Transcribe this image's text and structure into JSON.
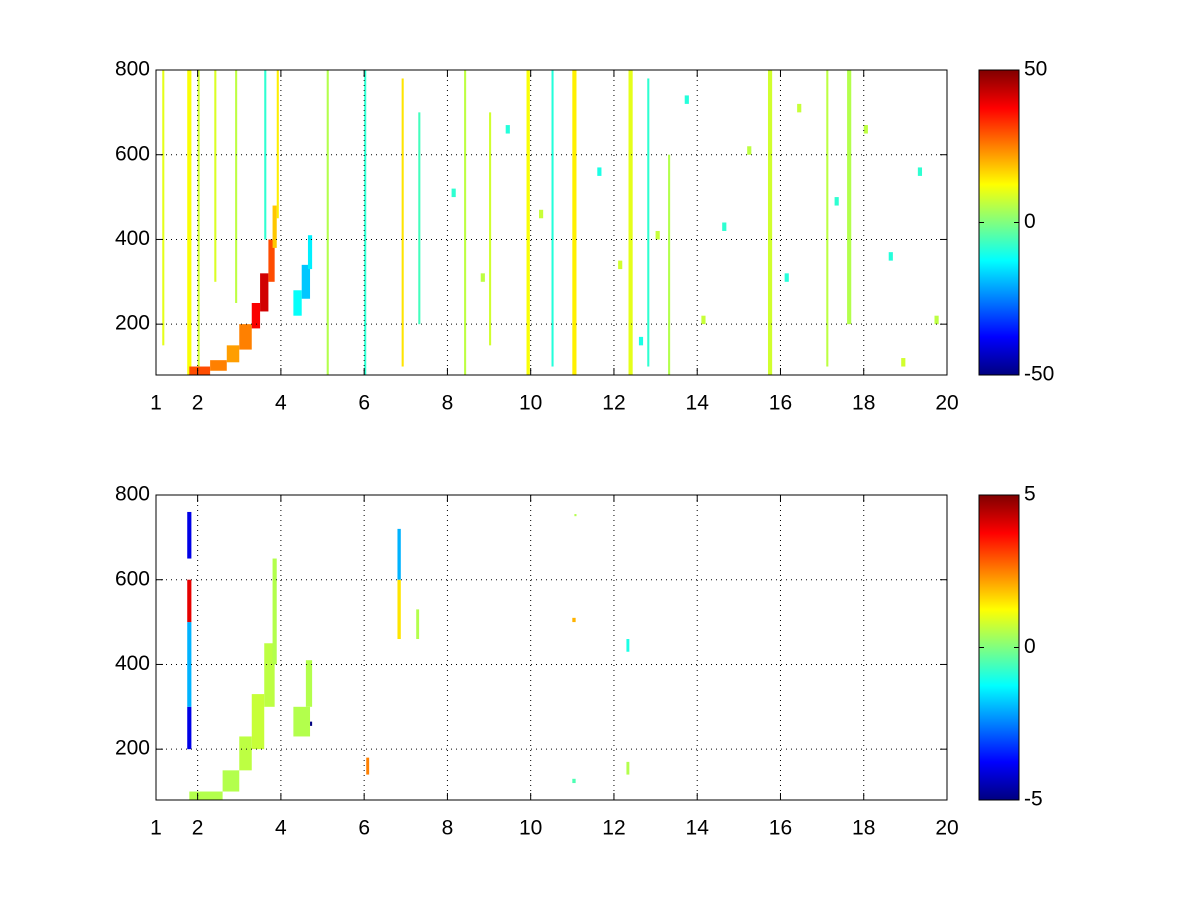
{
  "chart_data": [
    {
      "type": "heatmap",
      "colormap": "jet",
      "grid": true,
      "xlim": [
        1,
        20
      ],
      "xticks": [
        1,
        2,
        4,
        6,
        8,
        10,
        12,
        14,
        16,
        18,
        20
      ],
      "ylim": [
        80,
        800
      ],
      "yticks": [
        200,
        400,
        600,
        800
      ],
      "clim": [
        -50,
        50
      ],
      "cticks": [
        -50,
        0,
        50
      ],
      "cells": [
        {
          "x": [
            1.75,
            1.85
          ],
          "y": [
            80,
            800
          ],
          "value": 12
        },
        {
          "x": [
            2.0,
            2.05
          ],
          "y": [
            80,
            800
          ],
          "value": 8
        },
        {
          "x": [
            1.15,
            1.2
          ],
          "y": [
            150,
            800
          ],
          "value": 10
        },
        {
          "x": [
            2.4,
            2.45
          ],
          "y": [
            300,
            800
          ],
          "value": 9
        },
        {
          "x": [
            2.9,
            2.95
          ],
          "y": [
            250,
            800
          ],
          "value": 6
        },
        {
          "x": [
            3.9,
            3.95
          ],
          "y": [
            450,
            800
          ],
          "value": 14
        },
        {
          "x": [
            3.6,
            3.65
          ],
          "y": [
            400,
            800
          ],
          "value": -8
        },
        {
          "x": [
            5.1,
            5.15
          ],
          "y": [
            80,
            800
          ],
          "value": 5
        },
        {
          "x": [
            6.0,
            6.05
          ],
          "y": [
            80,
            800
          ],
          "value": -8
        },
        {
          "x": [
            6.9,
            6.95
          ],
          "y": [
            100,
            780
          ],
          "value": 15
        },
        {
          "x": [
            7.3,
            7.35
          ],
          "y": [
            200,
            700
          ],
          "value": -6
        },
        {
          "x": [
            8.4,
            8.45
          ],
          "y": [
            80,
            800
          ],
          "value": 6
        },
        {
          "x": [
            9.0,
            9.05
          ],
          "y": [
            150,
            700
          ],
          "value": 8
        },
        {
          "x": [
            9.9,
            9.98
          ],
          "y": [
            80,
            800
          ],
          "value": 12
        },
        {
          "x": [
            10.5,
            10.55
          ],
          "y": [
            100,
            800
          ],
          "value": -9
        },
        {
          "x": [
            11.0,
            11.1
          ],
          "y": [
            80,
            800
          ],
          "value": 14
        },
        {
          "x": [
            12.35,
            12.45
          ],
          "y": [
            80,
            800
          ],
          "value": 10
        },
        {
          "x": [
            12.8,
            12.85
          ],
          "y": [
            100,
            780
          ],
          "value": -8
        },
        {
          "x": [
            13.3,
            13.35
          ],
          "y": [
            80,
            600
          ],
          "value": 5
        },
        {
          "x": [
            15.7,
            15.8
          ],
          "y": [
            80,
            800
          ],
          "value": 8
        },
        {
          "x": [
            17.1,
            17.15
          ],
          "y": [
            100,
            800
          ],
          "value": 6
        },
        {
          "x": [
            17.6,
            17.7
          ],
          "y": [
            200,
            800
          ],
          "value": 5
        },
        {
          "x": [
            8.1,
            8.2
          ],
          "y": [
            500,
            520
          ],
          "value": -8
        },
        {
          "x": [
            8.8,
            8.9
          ],
          "y": [
            300,
            320
          ],
          "value": 6
        },
        {
          "x": [
            9.4,
            9.5
          ],
          "y": [
            650,
            670
          ],
          "value": -9
        },
        {
          "x": [
            10.2,
            10.3
          ],
          "y": [
            450,
            470
          ],
          "value": 7
        },
        {
          "x": [
            11.6,
            11.7
          ],
          "y": [
            550,
            570
          ],
          "value": -10
        },
        {
          "x": [
            12.1,
            12.2
          ],
          "y": [
            330,
            350
          ],
          "value": 8
        },
        {
          "x": [
            13.7,
            13.8
          ],
          "y": [
            720,
            740
          ],
          "value": -9
        },
        {
          "x": [
            14.1,
            14.2
          ],
          "y": [
            200,
            220
          ],
          "value": 7
        },
        {
          "x": [
            14.6,
            14.7
          ],
          "y": [
            420,
            440
          ],
          "value": -8
        },
        {
          "x": [
            15.2,
            15.3
          ],
          "y": [
            600,
            620
          ],
          "value": 6
        },
        {
          "x": [
            16.1,
            16.2
          ],
          "y": [
            300,
            320
          ],
          "value": -9
        },
        {
          "x": [
            16.4,
            16.5
          ],
          "y": [
            700,
            720
          ],
          "value": 7
        },
        {
          "x": [
            17.3,
            17.4
          ],
          "y": [
            480,
            500
          ],
          "value": -8
        },
        {
          "x": [
            18.0,
            18.1
          ],
          "y": [
            650,
            670
          ],
          "value": 6
        },
        {
          "x": [
            18.6,
            18.7
          ],
          "y": [
            350,
            370
          ],
          "value": -9
        },
        {
          "x": [
            18.9,
            19.0
          ],
          "y": [
            100,
            120
          ],
          "value": 8
        },
        {
          "x": [
            19.3,
            19.4
          ],
          "y": [
            550,
            570
          ],
          "value": -8
        },
        {
          "x": [
            19.7,
            19.8
          ],
          "y": [
            200,
            220
          ],
          "value": 6
        },
        {
          "x": [
            12.6,
            12.7
          ],
          "y": [
            150,
            170
          ],
          "value": -10
        },
        {
          "x": [
            13.0,
            13.1
          ],
          "y": [
            400,
            420
          ],
          "value": 7
        },
        {
          "x": [
            1.8,
            2.3
          ],
          "y": [
            80,
            100
          ],
          "value": 30
        },
        {
          "x": [
            2.3,
            2.7
          ],
          "y": [
            90,
            115
          ],
          "value": 25
        },
        {
          "x": [
            2.7,
            3.0
          ],
          "y": [
            110,
            150
          ],
          "value": 22
        },
        {
          "x": [
            3.0,
            3.3
          ],
          "y": [
            140,
            200
          ],
          "value": 25
        },
        {
          "x": [
            3.3,
            3.5
          ],
          "y": [
            190,
            250
          ],
          "value": 38
        },
        {
          "x": [
            3.5,
            3.7
          ],
          "y": [
            230,
            320
          ],
          "value": 42
        },
        {
          "x": [
            3.7,
            3.85
          ],
          "y": [
            300,
            400
          ],
          "value": 30
        },
        {
          "x": [
            3.8,
            3.9
          ],
          "y": [
            380,
            480
          ],
          "value": 18
        },
        {
          "x": [
            4.3,
            4.5
          ],
          "y": [
            220,
            280
          ],
          "value": -12
        },
        {
          "x": [
            4.5,
            4.7
          ],
          "y": [
            260,
            340
          ],
          "value": -18
        },
        {
          "x": [
            4.65,
            4.75
          ],
          "y": [
            330,
            410
          ],
          "value": -14
        }
      ]
    },
    {
      "type": "heatmap",
      "colormap": "jet",
      "grid": true,
      "xlim": [
        1,
        20
      ],
      "xticks": [
        1,
        2,
        4,
        6,
        8,
        10,
        12,
        14,
        16,
        18,
        20
      ],
      "ylim": [
        80,
        800
      ],
      "yticks": [
        200,
        400,
        600,
        800
      ],
      "clim": [
        -5,
        5
      ],
      "cticks": [
        -5,
        0,
        5
      ],
      "cells": [
        {
          "x": [
            1.75,
            1.85
          ],
          "y": [
            200,
            300
          ],
          "value": -4
        },
        {
          "x": [
            1.75,
            1.85
          ],
          "y": [
            300,
            500
          ],
          "value": -2
        },
        {
          "x": [
            1.75,
            1.85
          ],
          "y": [
            500,
            600
          ],
          "value": 4
        },
        {
          "x": [
            1.75,
            1.85
          ],
          "y": [
            650,
            760
          ],
          "value": -4
        },
        {
          "x": [
            1.8,
            2.6
          ],
          "y": [
            80,
            100
          ],
          "value": 0.5
        },
        {
          "x": [
            2.6,
            3.0
          ],
          "y": [
            100,
            150
          ],
          "value": 0.5
        },
        {
          "x": [
            3.0,
            3.3
          ],
          "y": [
            150,
            230
          ],
          "value": 0.6
        },
        {
          "x": [
            3.3,
            3.6
          ],
          "y": [
            200,
            330
          ],
          "value": 0.7
        },
        {
          "x": [
            3.6,
            3.85
          ],
          "y": [
            300,
            450
          ],
          "value": 0.6
        },
        {
          "x": [
            3.8,
            3.9
          ],
          "y": [
            400,
            650
          ],
          "value": 0.5
        },
        {
          "x": [
            4.3,
            4.7
          ],
          "y": [
            230,
            300
          ],
          "value": 0.5
        },
        {
          "x": [
            4.6,
            4.75
          ],
          "y": [
            300,
            410
          ],
          "value": 0.5
        },
        {
          "x": [
            4.7,
            4.75
          ],
          "y": [
            255,
            265
          ],
          "value": -5
        },
        {
          "x": [
            6.05,
            6.12
          ],
          "y": [
            140,
            180
          ],
          "value": 2.5
        },
        {
          "x": [
            6.8,
            6.88
          ],
          "y": [
            460,
            600
          ],
          "value": 1.5
        },
        {
          "x": [
            6.8,
            6.88
          ],
          "y": [
            600,
            720
          ],
          "value": -2
        },
        {
          "x": [
            7.25,
            7.32
          ],
          "y": [
            460,
            530
          ],
          "value": 0.5
        },
        {
          "x": [
            11.0,
            11.08
          ],
          "y": [
            500,
            510
          ],
          "value": 2
        },
        {
          "x": [
            11.0,
            11.08
          ],
          "y": [
            120,
            130
          ],
          "value": -0.5
        },
        {
          "x": [
            11.05,
            11.1
          ],
          "y": [
            750,
            755
          ],
          "value": 0.5
        },
        {
          "x": [
            12.3,
            12.37
          ],
          "y": [
            430,
            460
          ],
          "value": -1
        },
        {
          "x": [
            12.3,
            12.37
          ],
          "y": [
            140,
            170
          ],
          "value": 0.5
        }
      ]
    }
  ]
}
